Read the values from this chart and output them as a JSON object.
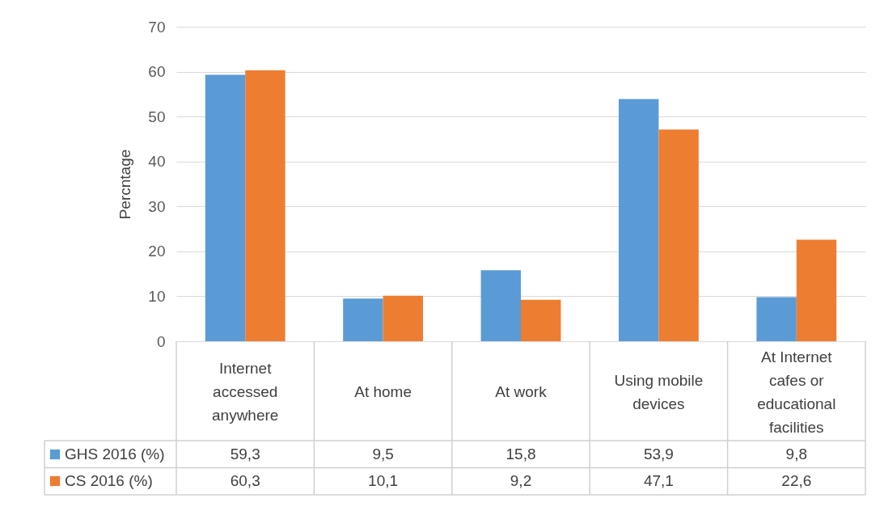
{
  "chart_data": {
    "type": "bar",
    "ylabel": "Percntage",
    "categories": [
      "Internet accessed anywhere",
      "At home",
      "At work",
      "Using mobile devices",
      "At Internet cafes or educational facilities"
    ],
    "series": [
      {
        "name": "GHS 2016 (%)",
        "color": "#5b9bd5",
        "values": [
          59.3,
          9.5,
          15.8,
          53.9,
          9.8
        ],
        "value_labels": [
          "59,3",
          "9,5",
          "15,8",
          "53,9",
          "9,8"
        ]
      },
      {
        "name": "CS 2016 (%)",
        "color": "#ed7d31",
        "values": [
          60.3,
          10.1,
          9.2,
          47.1,
          22.6
        ],
        "value_labels": [
          "60,3",
          "10,1",
          "9,2",
          "47,1",
          "22,6"
        ]
      }
    ],
    "ylim": [
      0,
      70
    ],
    "yticks": [
      0,
      10,
      20,
      30,
      40,
      50,
      60,
      70
    ],
    "grid": "y",
    "legend": "bottom left"
  }
}
